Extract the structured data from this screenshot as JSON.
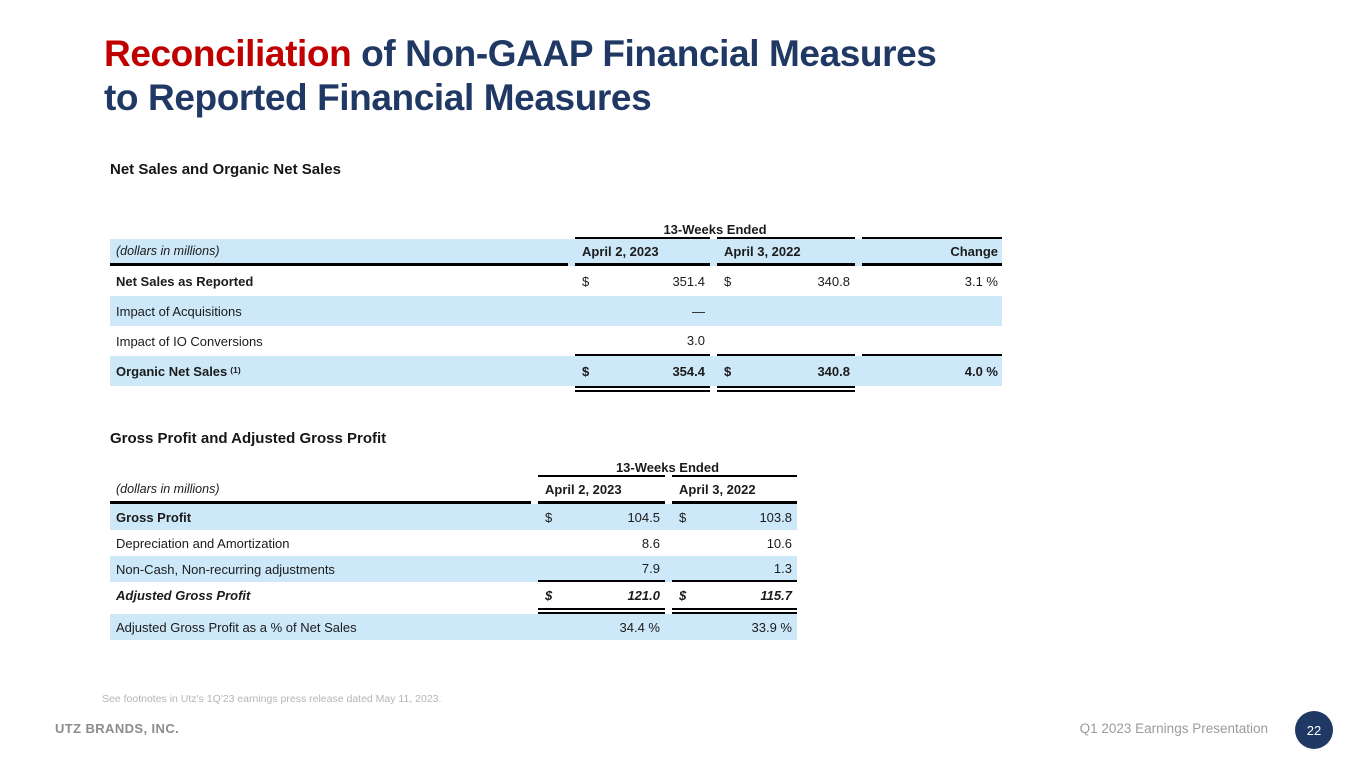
{
  "title": {
    "highlight": "Reconciliation",
    "line1_rest": " of Non-GAAP Financial Measures",
    "line2": "to Reported Financial Measures"
  },
  "colors": {
    "accent_red": "#C00000",
    "title_navy": "#1F3864",
    "row_blue": "#CDE8F9",
    "page_circle_navy": "#1F3864"
  },
  "net_sales_table": {
    "section_title": "Net Sales and Organic Net Sales",
    "period_header": "13-Weeks Ended",
    "units_note": "(dollars in millions)",
    "col_headers": [
      "April 2, 2023",
      "April 3, 2022",
      "Change"
    ],
    "rows": [
      {
        "label": "Net Sales as Reported",
        "cur1": "$",
        "val1": "351.4",
        "cur2": "$",
        "val2": "340.8",
        "change": "3.1 %"
      },
      {
        "label": "Impact of Acquisitions",
        "val1": "—"
      },
      {
        "label": "Impact of IO Conversions",
        "val1": "3.0"
      },
      {
        "label": "Organic Net Sales",
        "footnote_ref": "(1)",
        "cur1": "$",
        "val1": "354.4",
        "cur2": "$",
        "val2": "340.8",
        "change": "4.0 %"
      }
    ]
  },
  "gross_profit_table": {
    "section_title": "Gross Profit and Adjusted Gross Profit",
    "period_header": "13-Weeks Ended",
    "units_note": "(dollars in millions)",
    "col_headers": [
      "April 2, 2023",
      "April 3, 2022"
    ],
    "rows": [
      {
        "label": "Gross Profit",
        "cur1": "$",
        "val1": "104.5",
        "cur2": "$",
        "val2": "103.8"
      },
      {
        "label": "Depreciation and Amortization",
        "val1": "8.6",
        "val2": "10.6"
      },
      {
        "label": "Non-Cash, Non-recurring adjustments",
        "val1": "7.9",
        "val2": "1.3"
      },
      {
        "label": "Adjusted Gross Profit",
        "cur1": "$",
        "val1": "121.0",
        "cur2": "$",
        "val2": "115.7"
      },
      {
        "label": "Adjusted Gross Profit as a % of Net Sales",
        "val1": "34.4 %",
        "val2": "33.9 %"
      }
    ]
  },
  "footnote": "See footnotes in Utz's 1Q'23 earnings press release dated May 11, 2023.",
  "footer": {
    "company": "UTZ BRANDS, INC.",
    "presentation": "Q1 2023 Earnings Presentation",
    "page_number": "22"
  }
}
